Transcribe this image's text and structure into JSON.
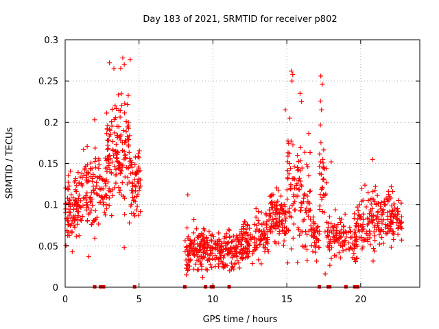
{
  "chart_data": {
    "type": "scatter",
    "title": "Day 183 of 2021, SRMTID for receiver p802",
    "xlabel": "GPS time / hours",
    "ylabel": "SRMTID / TECUs",
    "xlim": [
      0,
      24
    ],
    "ylim": [
      0,
      0.3
    ],
    "xticks": [
      0,
      5,
      10,
      15,
      20
    ],
    "xtick_labels": [
      "0",
      "5",
      "10",
      "15",
      "20"
    ],
    "yticks": [
      0,
      0.05,
      0.1,
      0.15,
      0.2,
      0.25,
      0.3
    ],
    "ytick_labels": [
      "0",
      "0.05",
      "0.1",
      "0.15",
      "0.2",
      "0.25",
      "0.3"
    ],
    "grid": true,
    "marker": "plus",
    "series_color": "#ff0000",
    "zero_markers_hours": [
      2.0,
      2.4,
      2.6,
      4.7,
      8.1,
      9.5,
      9.9,
      10.0,
      11.1,
      17.2,
      17.8,
      17.9,
      19.0,
      19.6,
      19.8
    ],
    "segments": [
      {
        "start": 0.0,
        "end": 1.0,
        "base": 0.095,
        "spread": 0.028,
        "n": 90
      },
      {
        "start": 1.0,
        "end": 2.1,
        "base": 0.115,
        "spread": 0.035,
        "n": 80
      },
      {
        "start": 2.1,
        "end": 2.8,
        "base": 0.125,
        "spread": 0.03,
        "n": 45
      },
      {
        "start": 2.8,
        "end": 3.6,
        "base": 0.16,
        "spread": 0.05,
        "n": 75
      },
      {
        "start": 3.6,
        "end": 4.4,
        "base": 0.175,
        "spread": 0.055,
        "n": 70
      },
      {
        "start": 4.4,
        "end": 5.1,
        "base": 0.12,
        "spread": 0.035,
        "n": 55
      },
      {
        "start": 8.1,
        "end": 9.8,
        "base": 0.045,
        "spread": 0.022,
        "n": 130
      },
      {
        "start": 9.8,
        "end": 12.0,
        "base": 0.045,
        "spread": 0.018,
        "n": 150
      },
      {
        "start": 12.0,
        "end": 13.8,
        "base": 0.06,
        "spread": 0.02,
        "n": 120
      },
      {
        "start": 13.8,
        "end": 15.0,
        "base": 0.085,
        "spread": 0.022,
        "n": 100
      },
      {
        "start": 15.0,
        "end": 16.6,
        "base": 0.11,
        "spread": 0.045,
        "n": 110
      },
      {
        "start": 16.6,
        "end": 17.2,
        "base": 0.065,
        "spread": 0.02,
        "n": 40
      },
      {
        "start": 17.2,
        "end": 17.7,
        "base": 0.13,
        "spread": 0.05,
        "n": 35
      },
      {
        "start": 17.7,
        "end": 19.8,
        "base": 0.06,
        "spread": 0.02,
        "n": 120
      },
      {
        "start": 19.8,
        "end": 21.5,
        "base": 0.085,
        "spread": 0.025,
        "n": 110
      },
      {
        "start": 21.5,
        "end": 22.8,
        "base": 0.085,
        "spread": 0.022,
        "n": 90
      }
    ],
    "outliers": [
      {
        "x": 3.0,
        "y": 0.272
      },
      {
        "x": 3.3,
        "y": 0.265
      },
      {
        "x": 3.9,
        "y": 0.278
      },
      {
        "x": 4.0,
        "y": 0.27
      },
      {
        "x": 4.4,
        "y": 0.276
      },
      {
        "x": 15.3,
        "y": 0.262
      },
      {
        "x": 15.4,
        "y": 0.258
      },
      {
        "x": 15.35,
        "y": 0.25
      },
      {
        "x": 17.3,
        "y": 0.256
      },
      {
        "x": 17.4,
        "y": 0.246
      },
      {
        "x": 15.9,
        "y": 0.235
      },
      {
        "x": 16.0,
        "y": 0.225
      },
      {
        "x": 17.35,
        "y": 0.215
      },
      {
        "x": 14.9,
        "y": 0.215
      },
      {
        "x": 15.2,
        "y": 0.205
      },
      {
        "x": 2.0,
        "y": 0.203
      },
      {
        "x": 20.8,
        "y": 0.155
      },
      {
        "x": 18.0,
        "y": 0.152
      },
      {
        "x": 8.3,
        "y": 0.112
      },
      {
        "x": 4.0,
        "y": 0.048
      },
      {
        "x": 1.6,
        "y": 0.037
      },
      {
        "x": 8.2,
        "y": 0.015
      },
      {
        "x": 9.3,
        "y": 0.012
      },
      {
        "x": 17.6,
        "y": 0.016
      }
    ]
  }
}
